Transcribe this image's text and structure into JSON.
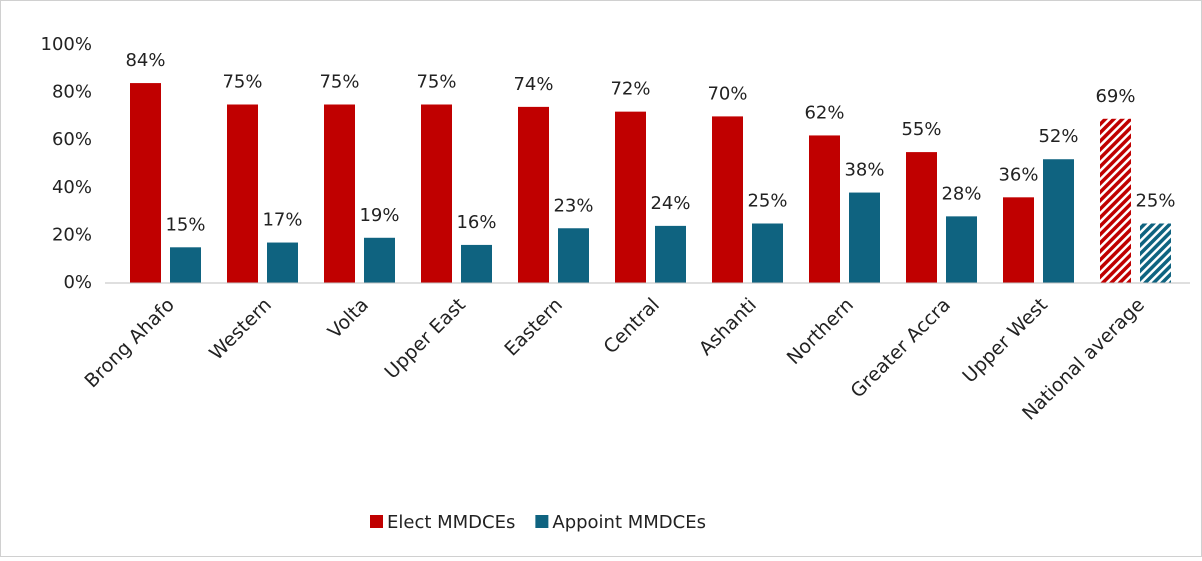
{
  "chart_data": {
    "type": "bar",
    "categories": [
      "Brong Ahafo",
      "Western",
      "Volta",
      "Upper East",
      "Eastern",
      "Central",
      "Ashanti",
      "Northern",
      "Greater Accra",
      "Upper West",
      "National average"
    ],
    "series": [
      {
        "name": "Elect MMDCEs",
        "color": "#c00000",
        "values": [
          84,
          75,
          75,
          75,
          74,
          72,
          70,
          62,
          55,
          36,
          69
        ],
        "value_labels": [
          "84%",
          "75%",
          "75%",
          "75%",
          "74%",
          "72%",
          "70%",
          "62%",
          "55%",
          "36%",
          "69%"
        ]
      },
      {
        "name": "Appoint MMDCEs",
        "color": "#0f6380",
        "values": [
          15,
          17,
          19,
          16,
          23,
          24,
          25,
          38,
          28,
          52,
          25
        ],
        "value_labels": [
          "15%",
          "17%",
          "19%",
          "16%",
          "23%",
          "24%",
          "25%",
          "38%",
          "28%",
          "52%",
          "25%"
        ]
      }
    ],
    "ylim": [
      0,
      100
    ],
    "yticks": [
      {
        "value": 0,
        "label": "0%"
      },
      {
        "value": 20,
        "label": "20%"
      },
      {
        "value": 40,
        "label": "40%"
      },
      {
        "value": 60,
        "label": "60%"
      },
      {
        "value": 80,
        "label": "80%"
      },
      {
        "value": 100,
        "label": "100%"
      }
    ],
    "grid": false,
    "legend": "bottom",
    "hatch_last_category": true
  }
}
